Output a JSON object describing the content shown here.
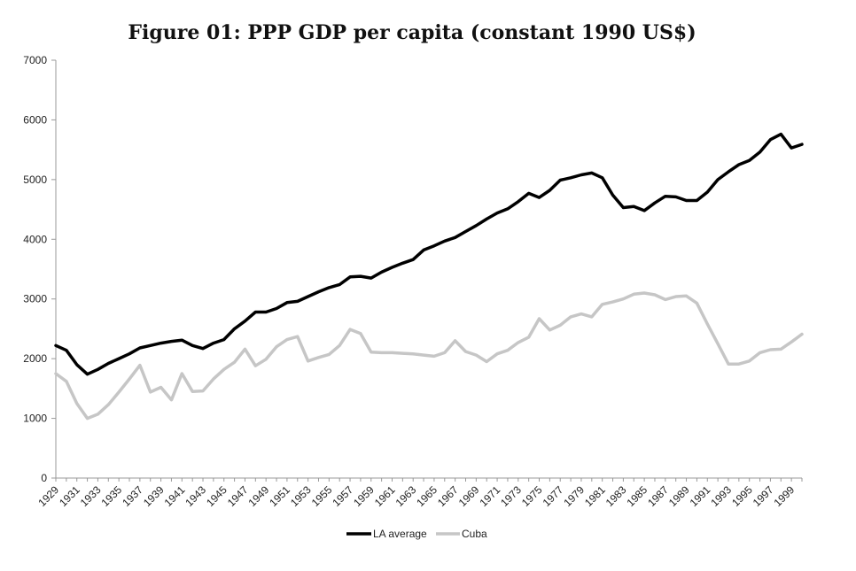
{
  "chart_data": {
    "type": "line",
    "title": "Figure 01: PPP GDP per capita (constant 1990 US$)",
    "xlabel": "",
    "ylabel": "",
    "ylim": [
      0,
      7000
    ],
    "yticks": [
      0,
      1000,
      2000,
      3000,
      4000,
      5000,
      6000,
      7000
    ],
    "x": [
      1929,
      1930,
      1931,
      1932,
      1933,
      1934,
      1935,
      1936,
      1937,
      1938,
      1939,
      1940,
      1941,
      1942,
      1943,
      1944,
      1945,
      1946,
      1947,
      1948,
      1949,
      1950,
      1951,
      1952,
      1953,
      1954,
      1955,
      1956,
      1957,
      1958,
      1959,
      1960,
      1961,
      1962,
      1963,
      1964,
      1965,
      1966,
      1967,
      1968,
      1969,
      1970,
      1971,
      1972,
      1973,
      1974,
      1975,
      1976,
      1977,
      1978,
      1979,
      1980,
      1981,
      1982,
      1983,
      1984,
      1985,
      1986,
      1987,
      1988,
      1989,
      1990,
      1991,
      1992,
      1993,
      1994,
      1995,
      1996,
      1997,
      1998,
      1999,
      2000
    ],
    "xtick_labels": [
      "1929",
      "1931",
      "1933",
      "1935",
      "1937",
      "1939",
      "1941",
      "1943",
      "1945",
      "1947",
      "1949",
      "1951",
      "1953",
      "1955",
      "1957",
      "1959",
      "1961",
      "1963",
      "1965",
      "1967",
      "1969",
      "1971",
      "1973",
      "1975",
      "1977",
      "1979",
      "1981",
      "1983",
      "1985",
      "1987",
      "1989",
      "1991",
      "1993",
      "1995",
      "1997",
      "1999"
    ],
    "grid": false,
    "legend_position": "bottom",
    "series": [
      {
        "name": "LA average",
        "color": "#000000",
        "values": [
          2220,
          2140,
          1900,
          1740,
          1820,
          1920,
          2000,
          2080,
          2180,
          2220,
          2260,
          2290,
          2310,
          2220,
          2170,
          2260,
          2320,
          2500,
          2630,
          2780,
          2780,
          2840,
          2940,
          2960,
          3040,
          3120,
          3190,
          3240,
          3370,
          3380,
          3350,
          3450,
          3530,
          3600,
          3660,
          3820,
          3890,
          3970,
          4030,
          4130,
          4230,
          4340,
          4440,
          4510,
          4630,
          4770,
          4700,
          4820,
          4990,
          5030,
          5080,
          5110,
          5030,
          4740,
          4530,
          4550,
          4480,
          4610,
          4720,
          4710,
          4650,
          4650,
          4790,
          5000,
          5130,
          5250,
          5320,
          5460,
          5670,
          5760,
          5530,
          5590
        ]
      },
      {
        "name": "Cuba",
        "color": "#c6c6c6",
        "values": [
          1750,
          1620,
          1250,
          1000,
          1070,
          1230,
          1440,
          1660,
          1890,
          1440,
          1520,
          1310,
          1750,
          1450,
          1460,
          1660,
          1820,
          1940,
          2160,
          1880,
          1990,
          2200,
          2320,
          2370,
          1960,
          2020,
          2070,
          2220,
          2490,
          2420,
          2110,
          2100,
          2100,
          2090,
          2080,
          2060,
          2040,
          2100,
          2300,
          2120,
          2060,
          1950,
          2080,
          2140,
          2270,
          2360,
          2670,
          2480,
          2560,
          2700,
          2750,
          2700,
          2910,
          2950,
          3000,
          3080,
          3100,
          3070,
          2990,
          3040,
          3050,
          2930,
          2580,
          2250,
          1910,
          1910,
          1960,
          2100,
          2150,
          2160,
          2280,
          2410
        ]
      }
    ]
  }
}
